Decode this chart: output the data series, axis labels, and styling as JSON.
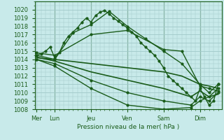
{
  "background_color": "#c8eaea",
  "grid_color": "#a0c8c8",
  "line_color": "#1a5c1a",
  "xlabel": "Pression niveau de la mer( hPa )",
  "ylim": [
    1008,
    1021
  ],
  "yticks": [
    1008,
    1009,
    1010,
    1011,
    1012,
    1013,
    1014,
    1015,
    1016,
    1017,
    1018,
    1019,
    1020
  ],
  "xtick_labels": [
    "Mer",
    "Lun",
    "Jeu",
    "Ven",
    "Sam",
    "Dim"
  ],
  "xtick_positions": [
    0,
    1,
    3,
    5,
    7,
    9
  ],
  "xlim": [
    -0.1,
    10.2
  ],
  "series": [
    {
      "x": [
        0.0,
        0.25,
        0.5,
        0.75,
        1.0,
        1.25,
        1.5,
        1.75,
        2.0,
        2.25,
        2.5,
        2.75,
        3.0,
        3.25,
        3.5,
        3.75,
        4.0,
        4.25,
        4.5,
        4.75,
        5.0,
        5.25,
        5.5,
        5.75,
        6.0,
        6.25,
        6.5,
        6.75,
        7.0,
        7.25,
        7.5,
        7.75,
        8.0,
        8.25,
        8.5,
        8.75,
        9.0,
        9.25,
        9.5,
        9.75,
        10.0
      ],
      "y": [
        1014.5,
        1014.7,
        1015.0,
        1015.5,
        1014.2,
        1014.8,
        1016.0,
        1016.8,
        1017.3,
        1017.8,
        1018.5,
        1019.0,
        1018.5,
        1019.3,
        1019.7,
        1019.9,
        1019.5,
        1019.0,
        1018.6,
        1018.2,
        1017.8,
        1017.3,
        1016.8,
        1016.0,
        1015.5,
        1015.0,
        1014.5,
        1013.8,
        1013.0,
        1012.0,
        1011.5,
        1011.0,
        1010.5,
        1010.0,
        1009.5,
        1009.0,
        1010.5,
        1009.5,
        1008.5,
        1009.0,
        1011.0
      ],
      "marker": "o",
      "markersize": 2.0,
      "linewidth": 1.0,
      "zorder": 5
    },
    {
      "x": [
        0.0,
        1.0,
        2.0,
        3.0,
        4.0,
        5.0,
        6.0,
        7.0,
        8.0,
        9.0,
        9.5,
        10.0
      ],
      "y": [
        1014.5,
        1014.0,
        1017.2,
        1018.2,
        1019.8,
        1018.0,
        1016.5,
        1015.0,
        1013.5,
        1011.0,
        1010.0,
        1011.0
      ],
      "marker": "o",
      "markersize": 2.0,
      "linewidth": 1.0,
      "zorder": 4
    },
    {
      "x": [
        0.0,
        1.0,
        3.0,
        5.0,
        7.0,
        8.0,
        9.0,
        9.5,
        10.0
      ],
      "y": [
        1014.8,
        1014.5,
        1017.0,
        1017.5,
        1015.2,
        1015.0,
        1010.8,
        1010.5,
        1010.2
      ],
      "marker": "o",
      "markersize": 2.0,
      "linewidth": 1.0,
      "zorder": 4
    },
    {
      "x": [
        0.0,
        1.0,
        3.0,
        5.0,
        7.0,
        8.0,
        9.0,
        9.5,
        10.0
      ],
      "y": [
        1014.2,
        1014.0,
        1013.5,
        1013.0,
        1012.5,
        1012.0,
        1011.0,
        1010.8,
        1010.5
      ],
      "marker": null,
      "markersize": 0,
      "linewidth": 1.2,
      "zorder": 3
    },
    {
      "x": [
        0.0,
        1.0,
        3.0,
        5.0,
        7.0,
        8.5,
        9.0,
        9.5,
        10.0
      ],
      "y": [
        1014.3,
        1013.8,
        1012.5,
        1011.5,
        1010.5,
        1009.5,
        1010.2,
        1009.5,
        1009.8
      ],
      "marker": null,
      "markersize": 0,
      "linewidth": 1.2,
      "zorder": 3
    },
    {
      "x": [
        0.0,
        1.0,
        3.0,
        5.0,
        7.0,
        8.5,
        9.0,
        9.5,
        10.0
      ],
      "y": [
        1014.0,
        1013.5,
        1011.5,
        1010.0,
        1009.0,
        1008.5,
        1009.5,
        1009.0,
        1010.0
      ],
      "marker": "o",
      "markersize": 2.0,
      "linewidth": 1.0,
      "zorder": 4
    },
    {
      "x": [
        0.0,
        1.0,
        3.0,
        5.0,
        7.0,
        8.5,
        9.0,
        9.5,
        10.0
      ],
      "y": [
        1014.0,
        1013.2,
        1010.5,
        1008.5,
        1008.0,
        1008.2,
        1009.0,
        1009.5,
        1010.5
      ],
      "marker": "o",
      "markersize": 2.0,
      "linewidth": 1.0,
      "zorder": 4
    }
  ]
}
